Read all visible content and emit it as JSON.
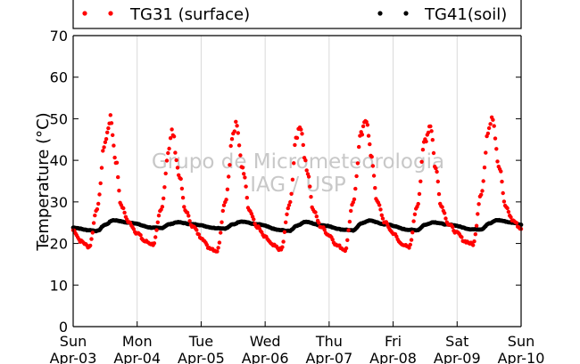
{
  "chart_data": {
    "type": "scatter",
    "ylabel": "Temperature (°C)",
    "ylim": [
      0,
      70
    ],
    "yticks": [
      0,
      10,
      20,
      30,
      40,
      50,
      60,
      70
    ],
    "xlim": [
      "2016-04-03",
      "2016-04-10"
    ],
    "xticks": [
      {
        "day": "Sun",
        "date": "Apr-03"
      },
      {
        "day": "Mon",
        "date": "Apr-04"
      },
      {
        "day": "Tue",
        "date": "Apr-05"
      },
      {
        "day": "Wed",
        "date": "Apr-06"
      },
      {
        "day": "Thu",
        "date": "Apr-07"
      },
      {
        "day": "Fri",
        "date": "Apr-08"
      },
      {
        "day": "Sat",
        "date": "Apr-09"
      },
      {
        "day": "Sun",
        "date": "Apr-10"
      }
    ],
    "grid": "vertical",
    "legend_position": "top",
    "watermark": [
      "Grupo de Micrometeorologia",
      "IAG / USP"
    ],
    "series": [
      {
        "name": "TG31 (surface)",
        "color": "#ff0000",
        "marker": "dot",
        "points": [
          [
            "04-03 00:00",
            23.2
          ],
          [
            "04-03 03:00",
            20.5
          ],
          [
            "04-03 06:00",
            19.2
          ],
          [
            "04-03 09:00",
            28.5
          ],
          [
            "04-03 12:00",
            44.5
          ],
          [
            "04-03 14:00",
            50.0
          ],
          [
            "04-03 16:00",
            40.0
          ],
          [
            "04-03 18:00",
            29.0
          ],
          [
            "04-03 21:00",
            25.0
          ],
          [
            "04-04 00:00",
            22.5
          ],
          [
            "04-04 03:00",
            20.5
          ],
          [
            "04-04 06:00",
            19.8
          ],
          [
            "04-04 09:00",
            28.0
          ],
          [
            "04-04 12:00",
            43.0
          ],
          [
            "04-04 13:00",
            47.0
          ],
          [
            "04-04 16:00",
            36.0
          ],
          [
            "04-04 18:00",
            28.0
          ],
          [
            "04-04 21:00",
            24.0
          ],
          [
            "04-05 00:00",
            21.5
          ],
          [
            "04-05 03:00",
            19.0
          ],
          [
            "04-05 06:00",
            18.2
          ],
          [
            "04-05 09:00",
            30.0
          ],
          [
            "04-05 12:00",
            46.0
          ],
          [
            "04-05 13:00",
            48.5
          ],
          [
            "04-05 16:00",
            37.0
          ],
          [
            "04-05 18:00",
            28.0
          ],
          [
            "04-05 21:00",
            24.0
          ],
          [
            "04-06 00:00",
            21.5
          ],
          [
            "04-06 03:00",
            19.5
          ],
          [
            "04-06 06:00",
            18.5
          ],
          [
            "04-06 09:00",
            29.0
          ],
          [
            "04-06 12:00",
            46.0
          ],
          [
            "04-06 13:00",
            48.5
          ],
          [
            "04-06 16:00",
            37.0
          ],
          [
            "04-06 18:00",
            28.0
          ],
          [
            "04-06 21:00",
            24.0
          ],
          [
            "04-07 00:00",
            22.0
          ],
          [
            "04-07 03:00",
            19.5
          ],
          [
            "04-07 06:00",
            18.5
          ],
          [
            "04-07 09:00",
            30.0
          ],
          [
            "04-07 12:00",
            46.0
          ],
          [
            "04-07 14:00",
            50.0
          ],
          [
            "04-07 16:00",
            40.0
          ],
          [
            "04-07 18:00",
            30.0
          ],
          [
            "04-07 21:00",
            25.0
          ],
          [
            "04-08 00:00",
            22.5
          ],
          [
            "04-08 03:00",
            20.0
          ],
          [
            "04-08 06:00",
            19.0
          ],
          [
            "04-08 09:00",
            29.0
          ],
          [
            "04-08 12:00",
            45.0
          ],
          [
            "04-08 14:00",
            48.5
          ],
          [
            "04-08 16:00",
            38.0
          ],
          [
            "04-08 18:00",
            29.0
          ],
          [
            "04-08 21:00",
            24.5
          ],
          [
            "04-09 00:00",
            22.5
          ],
          [
            "04-09 03:00",
            20.5
          ],
          [
            "04-09 06:00",
            19.8
          ],
          [
            "04-09 09:00",
            32.0
          ],
          [
            "04-09 12:00",
            48.0
          ],
          [
            "04-09 13:00",
            51.0
          ],
          [
            "04-09 16:00",
            38.0
          ],
          [
            "04-09 18:00",
            29.0
          ],
          [
            "04-09 21:00",
            25.5
          ],
          [
            "04-10 00:00",
            23.5
          ]
        ]
      },
      {
        "name": "TG41(soil)",
        "color": "#000000",
        "marker": "dot",
        "points": [
          [
            "04-03 00:00",
            23.8
          ],
          [
            "04-03 06:00",
            23.2
          ],
          [
            "04-03 09:00",
            23.0
          ],
          [
            "04-03 12:00",
            24.5
          ],
          [
            "04-03 15:00",
            25.6
          ],
          [
            "04-03 21:00",
            25.0
          ],
          [
            "04-04 06:00",
            23.8
          ],
          [
            "04-04 09:00",
            23.7
          ],
          [
            "04-04 12:00",
            24.6
          ],
          [
            "04-04 15:00",
            25.1
          ],
          [
            "04-04 21:00",
            24.6
          ],
          [
            "04-05 06:00",
            23.7
          ],
          [
            "04-05 09:00",
            23.6
          ],
          [
            "04-05 12:00",
            24.6
          ],
          [
            "04-05 15:00",
            25.3
          ],
          [
            "04-05 21:00",
            24.6
          ],
          [
            "04-06 06:00",
            23.2
          ],
          [
            "04-06 09:00",
            23.0
          ],
          [
            "04-06 12:00",
            24.3
          ],
          [
            "04-06 15:00",
            25.2
          ],
          [
            "04-06 21:00",
            24.4
          ],
          [
            "04-07 06:00",
            23.3
          ],
          [
            "04-07 09:00",
            23.1
          ],
          [
            "04-07 12:00",
            24.8
          ],
          [
            "04-07 15:00",
            25.5
          ],
          [
            "04-07 21:00",
            24.6
          ],
          [
            "04-08 06:00",
            23.3
          ],
          [
            "04-08 09:00",
            23.2
          ],
          [
            "04-08 12:00",
            24.5
          ],
          [
            "04-08 15:00",
            25.1
          ],
          [
            "04-08 21:00",
            24.5
          ],
          [
            "04-09 06:00",
            23.4
          ],
          [
            "04-09 09:00",
            23.4
          ],
          [
            "04-09 12:00",
            24.8
          ],
          [
            "04-09 15:00",
            25.6
          ],
          [
            "04-09 21:00",
            25.0
          ],
          [
            "04-10 00:00",
            24.5
          ]
        ]
      }
    ]
  }
}
